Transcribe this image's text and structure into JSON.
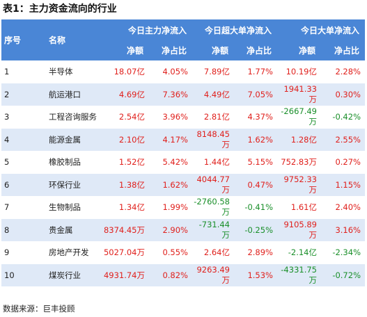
{
  "title": "表1：主力资金流向的行业",
  "header": {
    "seq": "序号",
    "name": "名称",
    "groups": [
      "今日主力净流入",
      "今日超大单净流入",
      "今日大单净流入"
    ],
    "sub": [
      "净额",
      "净占比",
      "净额",
      "净占比",
      "净额",
      "净占比"
    ]
  },
  "rows": [
    {
      "no": "1",
      "name": "半导体",
      "a": "18.07亿",
      "b": "4.05%",
      "c": "7.89亿",
      "d": "1.77%",
      "e": "10.19亿",
      "f": "2.28%"
    },
    {
      "no": "2",
      "name": "航运港口",
      "a": "4.69亿",
      "b": "7.36%",
      "c": "4.49亿",
      "d": "7.05%",
      "e": "1941.33万",
      "f": "0.30%"
    },
    {
      "no": "3",
      "name": "工程咨询服务",
      "a": "2.54亿",
      "b": "3.96%",
      "c": "2.81亿",
      "d": "4.37%",
      "e": "-2667.49万",
      "f": "-0.42%"
    },
    {
      "no": "4",
      "name": "能源金属",
      "a": "2.10亿",
      "b": "4.17%",
      "c": "8148.45万",
      "d": "1.62%",
      "e": "1.28亿",
      "f": "2.55%"
    },
    {
      "no": "5",
      "name": "橡胶制品",
      "a": "1.52亿",
      "b": "5.42%",
      "c": "1.44亿",
      "d": "5.15%",
      "e": "752.83万",
      "f": "0.27%"
    },
    {
      "no": "6",
      "name": "环保行业",
      "a": "1.38亿",
      "b": "1.62%",
      "c": "4044.77万",
      "d": "0.47%",
      "e": "9752.33万",
      "f": "1.15%"
    },
    {
      "no": "7",
      "name": "生物制品",
      "a": "1.34亿",
      "b": "1.99%",
      "c": "-2760.58万",
      "d": "-0.41%",
      "e": "1.61亿",
      "f": "2.40%"
    },
    {
      "no": "8",
      "name": "贵金属",
      "a": "8374.45万",
      "b": "2.90%",
      "c": "-731.44万",
      "d": "-0.25%",
      "e": "9105.89万",
      "f": "3.16%"
    },
    {
      "no": "9",
      "name": "房地产开发",
      "a": "5027.04万",
      "b": "0.55%",
      "c": "2.64亿",
      "d": "2.89%",
      "e": "-2.14亿",
      "f": "-2.34%"
    },
    {
      "no": "10",
      "name": "煤炭行业",
      "a": "4931.74万",
      "b": "0.82%",
      "c": "9263.49万",
      "d": "1.53%",
      "e": "-4331.75万",
      "f": "-0.72%"
    }
  ],
  "source": "数据来源：巨丰投顾",
  "colors": {
    "header": "#4a86d6",
    "alt_row": "#dfe9f7",
    "positive": "#e0201c",
    "negative": "#1a8f2a"
  }
}
